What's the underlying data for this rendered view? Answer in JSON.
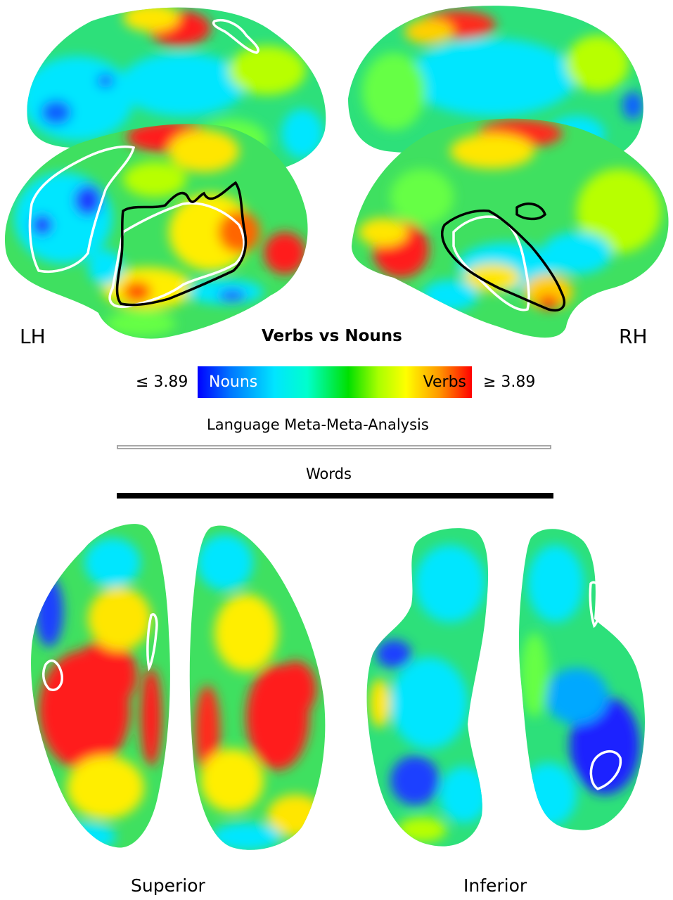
{
  "figure": {
    "title": "Verbs vs Nouns",
    "hemisphere_left": "LH",
    "hemisphere_right": "RH",
    "colorbar": {
      "min_label": "≤ 3.89",
      "max_label": "≥ 3.89",
      "low_label": "Nouns",
      "high_label": "Verbs",
      "colors": [
        "#0000ff",
        "#00e5ff",
        "#00e000",
        "#ffff00",
        "#ff0000"
      ]
    },
    "legend": {
      "meta_analysis": "Language Meta-Meta-Analysis",
      "words": "Words",
      "meta_outline_color": "#ffffff",
      "words_outline_color": "#000000"
    },
    "views": {
      "superior": "Superior",
      "inferior": "Inferior"
    }
  }
}
